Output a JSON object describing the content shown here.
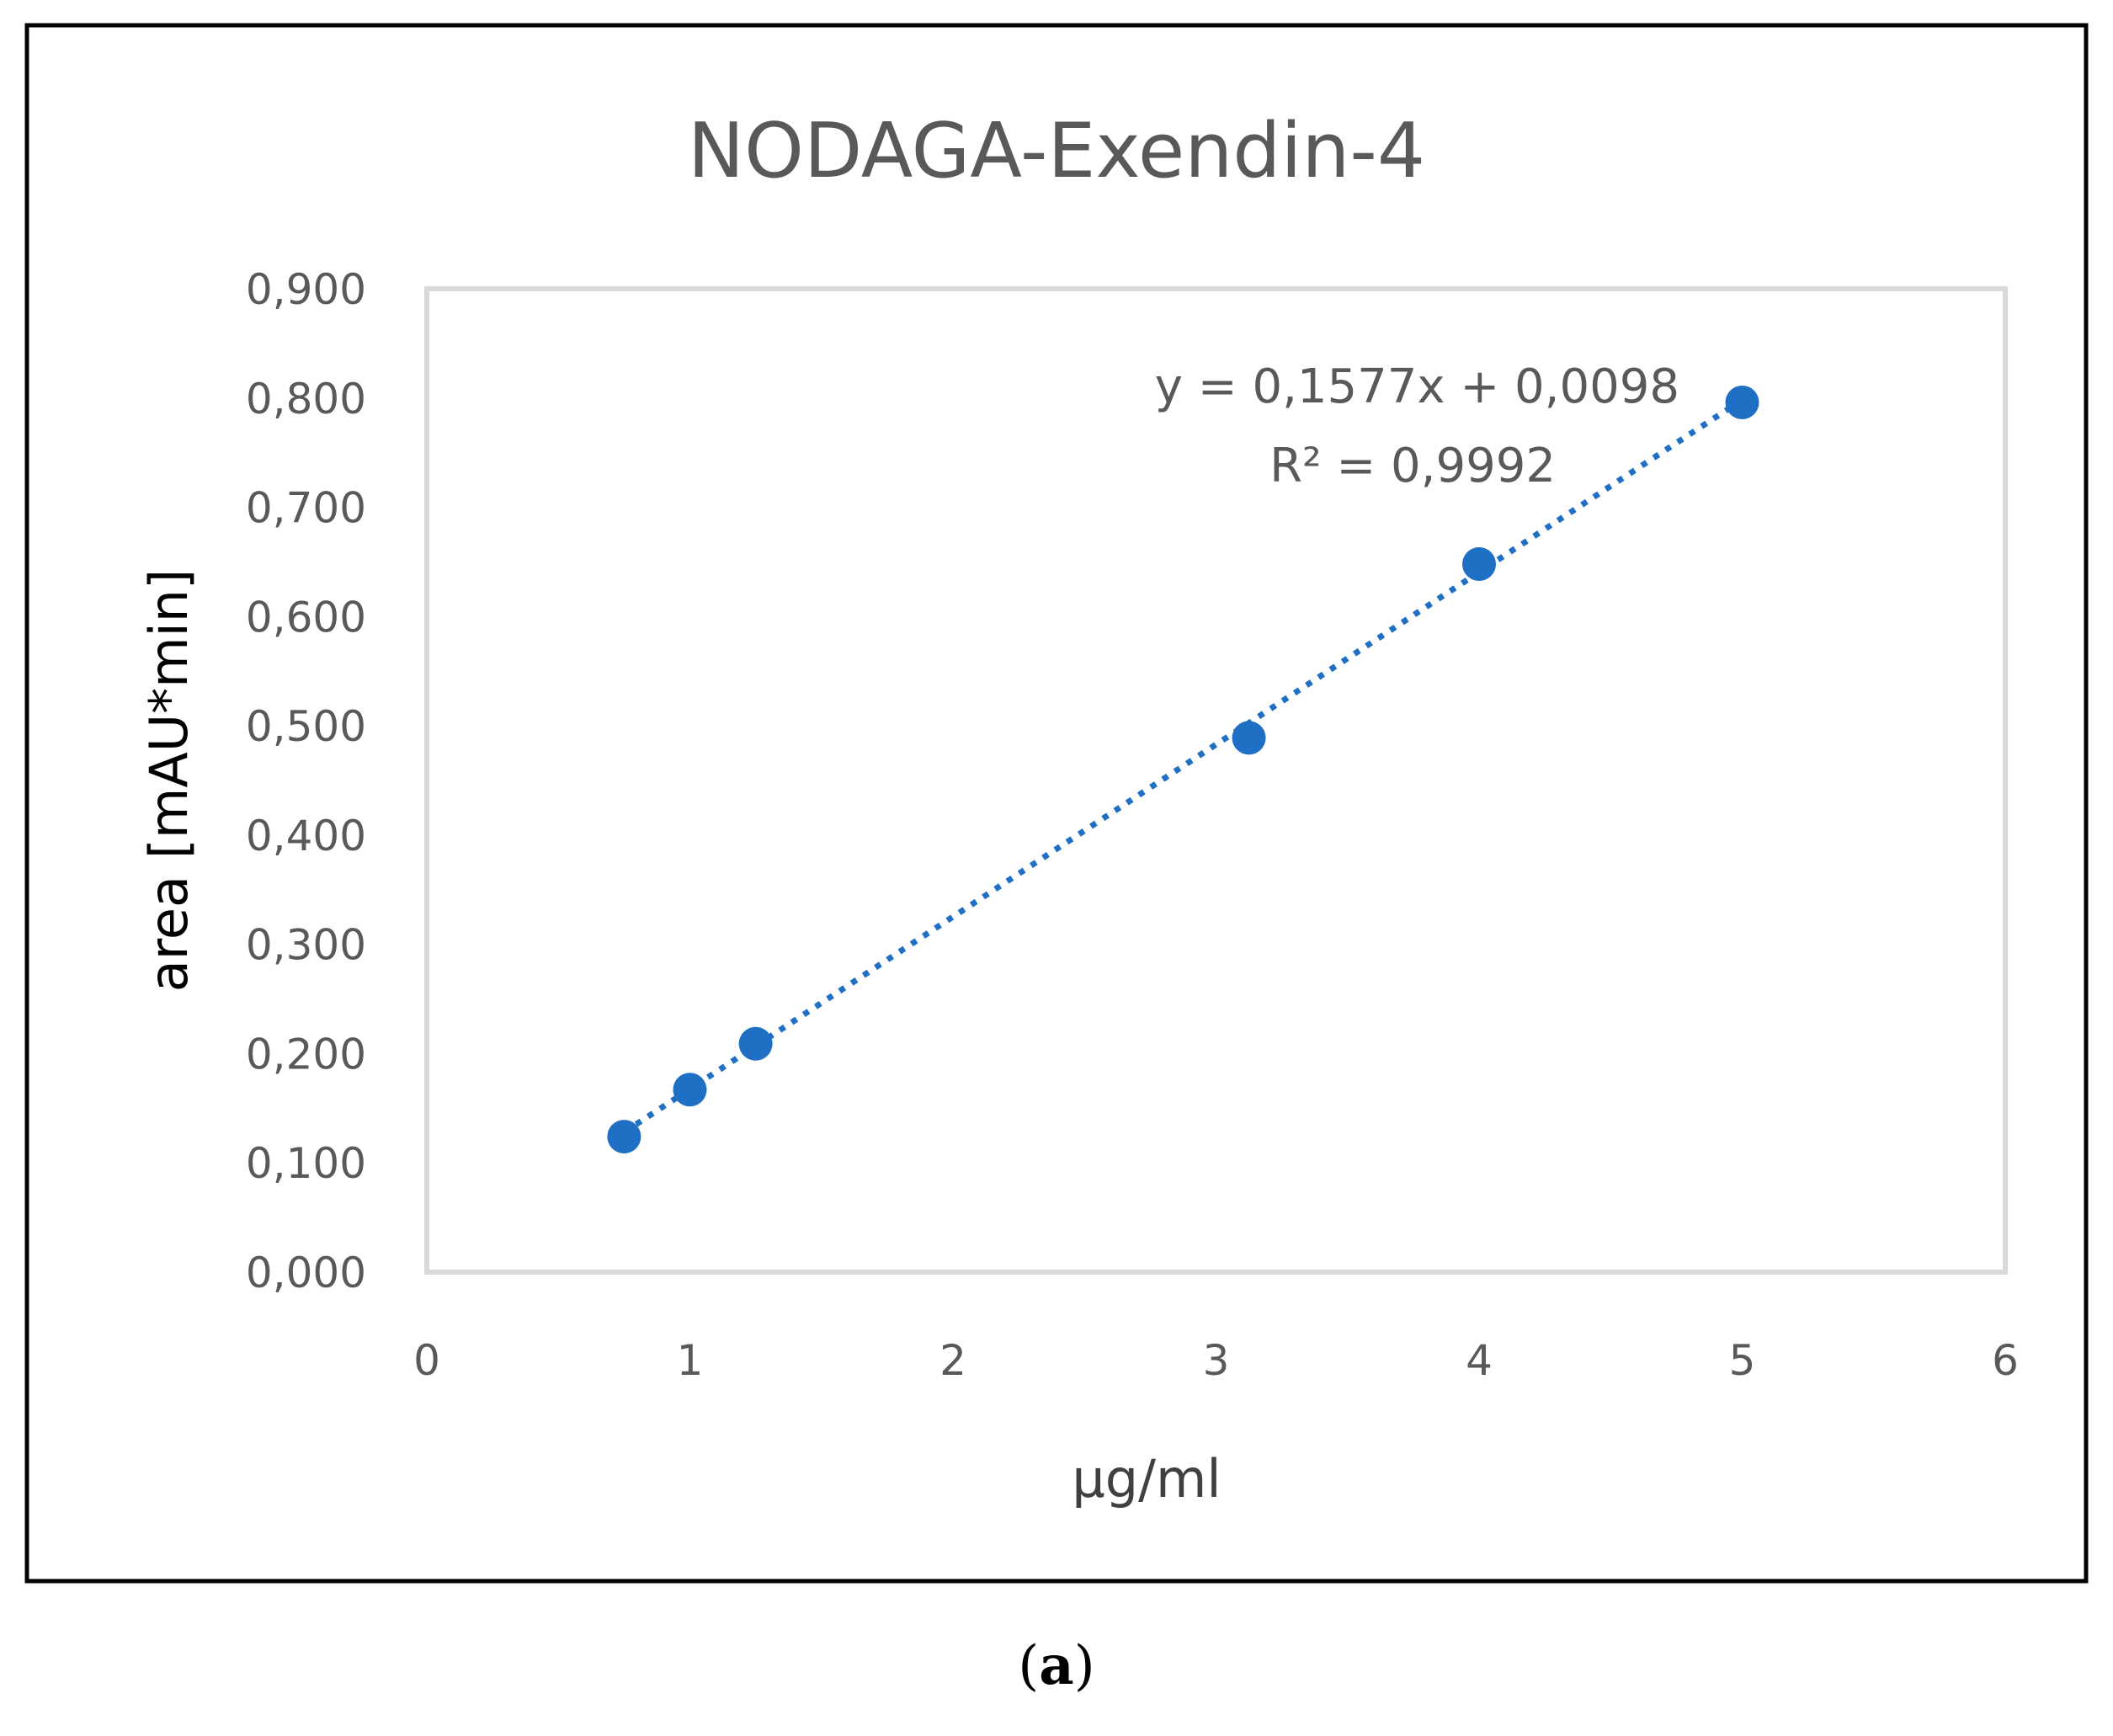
{
  "chart_data": {
    "type": "scatter",
    "title": "NODAGA-Exendin-4",
    "xlabel": "µg/ml",
    "ylabel": "area [mAU*min]",
    "xlim": [
      0,
      6
    ],
    "ylim": [
      0,
      0.9
    ],
    "x_ticks": [
      0,
      1,
      2,
      3,
      4,
      5,
      6
    ],
    "x_tick_labels": [
      "0",
      "1",
      "2",
      "3",
      "4",
      "5",
      "6"
    ],
    "y_ticks": [
      0,
      0.1,
      0.2,
      0.3,
      0.4,
      0.5,
      0.6,
      0.7,
      0.8,
      0.9
    ],
    "y_tick_labels": [
      "0,000",
      "0,100",
      "0,200",
      "0,300",
      "0,400",
      "0,500",
      "0,600",
      "0,700",
      "0,800",
      "0,900"
    ],
    "series": [
      {
        "name": "NODAGA-Exendin-4",
        "color": "#1f6fc5",
        "x": [
          0.75,
          1.0,
          1.25,
          3.125,
          4.0,
          5.0
        ],
        "y": [
          0.124,
          0.167,
          0.209,
          0.489,
          0.648,
          0.796
        ]
      }
    ],
    "trendline": {
      "type": "linear",
      "slope": 0.1577,
      "intercept": 0.0098,
      "x_range": [
        0.75,
        5.0
      ],
      "style": "dotted",
      "color": "#1f6fc5",
      "equation_label": "y = 0,1577x + 0,0098",
      "r2_label": "R² = 0,9992"
    },
    "grid": false
  },
  "caption": {
    "open": "(",
    "letter": "a",
    "close": ")"
  }
}
